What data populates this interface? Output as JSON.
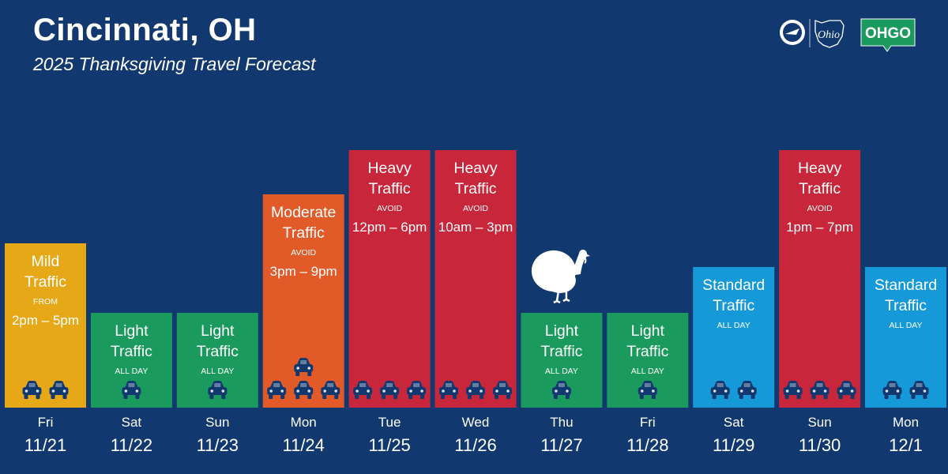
{
  "header": {
    "title": "Cincinnati, OH",
    "subtitle": "2025 Thanksgiving Travel Forecast"
  },
  "logos": {
    "ohio_text": "Ohio",
    "ohgo_text": "OHGO"
  },
  "colors": {
    "background": "#12396f",
    "mild": "#e6a817",
    "light": "#1a9a5c",
    "moderate": "#e15a28",
    "heavy": "#c8263a",
    "standard": "#1699d8",
    "car": "#12396f"
  },
  "chart_data": {
    "type": "bar",
    "levels": [
      "Light",
      "Standard",
      "Mild",
      "Moderate",
      "Heavy"
    ],
    "categories": [
      "Fri 11/21",
      "Sat 11/22",
      "Sun 11/23",
      "Mon 11/24",
      "Tue 11/25",
      "Wed 11/26",
      "Thu 11/27",
      "Fri 11/28",
      "Sat 11/29",
      "Sun 11/30",
      "Mon 12/1"
    ],
    "days": [
      {
        "day": "Fri",
        "date": "11/21",
        "level": 3,
        "color": "mild",
        "line1": "Mild",
        "line2": "Traffic",
        "note": "FROM",
        "time": "2pm – 5pm",
        "cars": 2,
        "stack": false
      },
      {
        "day": "Sat",
        "date": "11/22",
        "level": 1,
        "color": "light",
        "line1": "Light",
        "line2": "Traffic",
        "note": "ALL DAY",
        "time": "",
        "cars": 1,
        "stack": false
      },
      {
        "day": "Sun",
        "date": "11/23",
        "level": 1,
        "color": "light",
        "line1": "Light",
        "line2": "Traffic",
        "note": "ALL DAY",
        "time": "",
        "cars": 1,
        "stack": false
      },
      {
        "day": "Mon",
        "date": "11/24",
        "level": 4,
        "color": "moderate",
        "line1": "Moderate",
        "line2": "Traffic",
        "note": "AVOID",
        "time": "3pm – 9pm",
        "cars": 3,
        "stack": true
      },
      {
        "day": "Tue",
        "date": "11/25",
        "level": 5,
        "color": "heavy",
        "line1": "Heavy",
        "line2": "Traffic",
        "note": "AVOID",
        "time": "12pm – 6pm",
        "cars": 3,
        "stack": false
      },
      {
        "day": "Wed",
        "date": "11/26",
        "level": 5,
        "color": "heavy",
        "line1": "Heavy",
        "line2": "Traffic",
        "note": "AVOID",
        "time": "10am – 3pm",
        "cars": 3,
        "stack": false
      },
      {
        "day": "Thu",
        "date": "11/27",
        "level": 1,
        "color": "light",
        "line1": "Light",
        "line2": "Traffic",
        "note": "ALL DAY",
        "time": "",
        "cars": 1,
        "stack": false,
        "turkey": true
      },
      {
        "day": "Fri",
        "date": "11/28",
        "level": 1,
        "color": "light",
        "line1": "Light",
        "line2": "Traffic",
        "note": "ALL DAY",
        "time": "",
        "cars": 1,
        "stack": false
      },
      {
        "day": "Sat",
        "date": "11/29",
        "level": 2,
        "color": "standard",
        "line1": "Standard",
        "line2": "Traffic",
        "note": "ALL DAY",
        "time": "",
        "cars": 2,
        "stack": false
      },
      {
        "day": "Sun",
        "date": "11/30",
        "level": 5,
        "color": "heavy",
        "line1": "Heavy",
        "line2": "Traffic",
        "note": "AVOID",
        "time": "1pm – 7pm",
        "cars": 3,
        "stack": false
      },
      {
        "day": "Mon",
        "date": "12/1",
        "level": 2,
        "color": "standard",
        "line1": "Standard",
        "line2": "Traffic",
        "note": "ALL DAY",
        "time": "",
        "cars": 2,
        "stack": false
      }
    ],
    "xlabel": "",
    "ylabel": "",
    "legend": "none",
    "grid": false
  }
}
